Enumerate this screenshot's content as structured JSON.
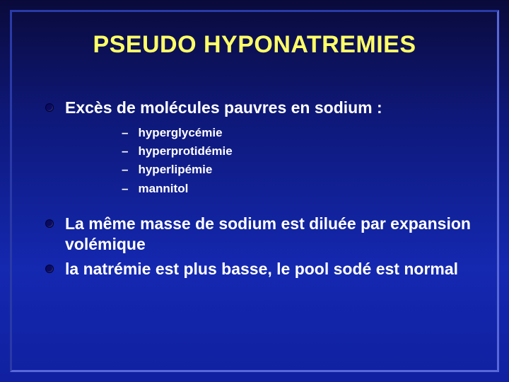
{
  "slide": {
    "title": "PSEUDO HYPONATREMIES",
    "background_gradient": [
      "#0a0a3a",
      "#0e1878",
      "#1428b0",
      "#1020a0"
    ],
    "title_color": "#ffff66",
    "text_color": "#ffffff",
    "bullet_color": "#0a0a60",
    "border_light": "#5868d8",
    "border_dark": "#2a3aa8",
    "title_fontsize": 34,
    "level1_fontsize": 23,
    "level2_fontsize": 17,
    "bullets": [
      {
        "text": "Excès de molécules pauvres en sodium :",
        "sub": [
          "hyperglycémie",
          "hyperprotidémie",
          "hyperlipémie",
          "mannitol"
        ]
      },
      {
        "text": "La même masse de sodium est diluée par expansion volémique",
        "sub": []
      },
      {
        "text": "la natrémie est plus basse, le pool sodé est normal",
        "sub": []
      }
    ]
  }
}
